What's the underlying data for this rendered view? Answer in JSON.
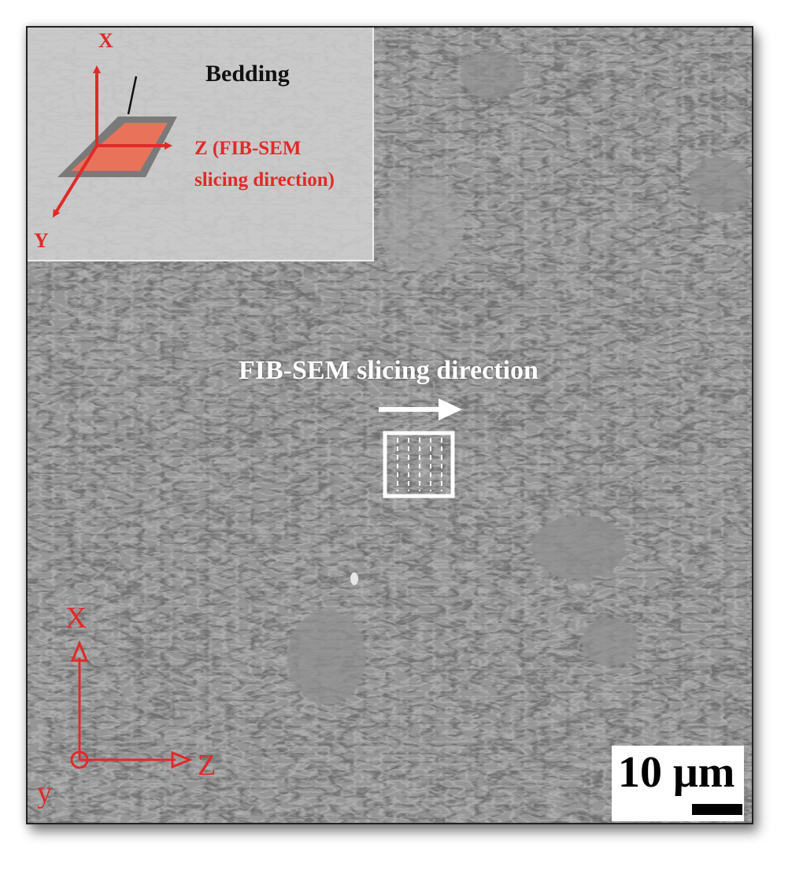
{
  "inset": {
    "axis_x": "X",
    "axis_y": "Y",
    "bedding_label": "Bedding",
    "z_label_line1": "Z (FIB-SEM",
    "z_label_line2": "slicing direction)"
  },
  "main": {
    "slicing_title": "FIB-SEM slicing direction",
    "axis_x": "X",
    "axis_z": "Z",
    "axis_y": "y"
  },
  "scale_bar": {
    "label": "10 μm",
    "length_um": 10
  },
  "colors": {
    "annotation_red": "#e02a2a",
    "bedding_fill": "#e8735a",
    "sem_background": "#8d8d8d",
    "inset_background": "#c9c9c9"
  }
}
